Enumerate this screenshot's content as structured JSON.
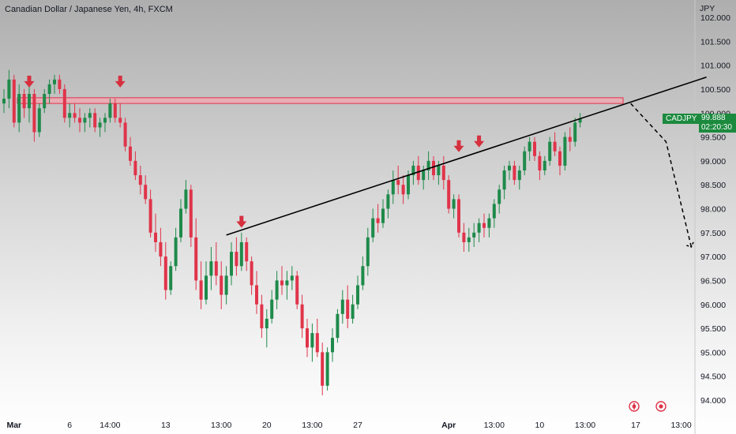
{
  "title": "Canadian Dollar / Japanese Yen, 4h, FXCM",
  "symbol": "CADJPY",
  "current_price": "99.888",
  "countdown": "02:20:30",
  "colors": {
    "up": "#1e8a4a",
    "down": "#e0344a",
    "zone_fill": "#f4a5b0",
    "zone_stroke": "#e0344a",
    "arrow": "#d6303f",
    "trendline": "#000000",
    "label_bg": "#1c8a3e"
  },
  "icons": [
    "event-icon",
    "event-icon"
  ],
  "chart_data": {
    "type": "candlestick",
    "title": "Canadian Dollar / Japanese Yen, 4h, FXCM",
    "y_unit": "JPY",
    "ylim": [
      93.8,
      102.2
    ],
    "y_ticks": [
      "94.000",
      "94.500",
      "95.000",
      "95.500",
      "96.000",
      "96.500",
      "97.000",
      "97.500",
      "98.000",
      "98.500",
      "99.000",
      "99.500",
      "100.000",
      "100.500",
      "101.000",
      "101.500",
      "102.000"
    ],
    "x_ticks": [
      {
        "label": "Mar",
        "bold": true,
        "i": 2
      },
      {
        "label": "6",
        "bold": false,
        "i": 13
      },
      {
        "label": "14:00",
        "bold": false,
        "i": 21
      },
      {
        "label": "13",
        "bold": false,
        "i": 32
      },
      {
        "label": "13:00",
        "bold": false,
        "i": 43
      },
      {
        "label": "20",
        "bold": false,
        "i": 52
      },
      {
        "label": "13:00",
        "bold": false,
        "i": 61
      },
      {
        "label": "27",
        "bold": false,
        "i": 70
      },
      {
        "label": "Apr",
        "bold": true,
        "i": 88
      },
      {
        "label": "13:00",
        "bold": false,
        "i": 97
      },
      {
        "label": "10",
        "bold": false,
        "i": 106
      },
      {
        "label": "13:00",
        "bold": false,
        "i": 115
      },
      {
        "label": "17",
        "bold": false,
        "i": 125
      },
      {
        "label": "13:00",
        "bold": false,
        "i": 134
      }
    ],
    "resistance_zone": [
      100.2,
      100.32
    ],
    "trendline": [
      {
        "i": 44,
        "price": 97.45
      },
      {
        "i": 139,
        "price": 100.75
      }
    ],
    "projection": [
      {
        "i": 124,
        "price": 100.2
      },
      {
        "i": 131,
        "price": 99.4
      },
      {
        "i": 136,
        "price": 97.2
      }
    ],
    "markers": [
      {
        "i": 5,
        "price": 100.55
      },
      {
        "i": 23,
        "price": 100.55
      },
      {
        "i": 47,
        "price": 97.62
      },
      {
        "i": 90,
        "price": 99.2
      },
      {
        "i": 94,
        "price": 99.3
      }
    ],
    "candles": [
      [
        100.2,
        100.5,
        100.0,
        100.3
      ],
      [
        100.3,
        100.9,
        100.1,
        100.7
      ],
      [
        100.7,
        100.8,
        99.7,
        99.8
      ],
      [
        99.8,
        100.6,
        99.6,
        100.4
      ],
      [
        100.4,
        100.5,
        99.9,
        100.1
      ],
      [
        100.1,
        100.6,
        99.8,
        100.4
      ],
      [
        100.4,
        100.5,
        99.4,
        99.6
      ],
      [
        99.6,
        100.2,
        99.5,
        100.1
      ],
      [
        100.1,
        100.5,
        100.0,
        100.4
      ],
      [
        100.4,
        100.7,
        100.2,
        100.6
      ],
      [
        100.6,
        100.8,
        100.4,
        100.7
      ],
      [
        100.7,
        100.8,
        100.4,
        100.5
      ],
      [
        100.5,
        100.6,
        99.8,
        99.9
      ],
      [
        99.9,
        100.2,
        99.7,
        100.0
      ],
      [
        100.0,
        100.2,
        99.8,
        99.9
      ],
      [
        99.9,
        100.1,
        99.6,
        99.8
      ],
      [
        99.8,
        100.0,
        99.6,
        99.9
      ],
      [
        99.9,
        100.1,
        99.7,
        100.0
      ],
      [
        100.0,
        100.1,
        99.6,
        99.7
      ],
      [
        99.7,
        99.9,
        99.5,
        99.8
      ],
      [
        99.8,
        100.0,
        99.6,
        99.9
      ],
      [
        99.9,
        100.3,
        99.8,
        100.2
      ],
      [
        100.2,
        100.3,
        99.8,
        99.9
      ],
      [
        99.9,
        100.2,
        99.7,
        99.8
      ],
      [
        99.8,
        99.9,
        99.2,
        99.3
      ],
      [
        99.3,
        99.5,
        98.9,
        99.0
      ],
      [
        99.0,
        99.2,
        98.6,
        98.7
      ],
      [
        98.7,
        98.9,
        98.3,
        98.5
      ],
      [
        98.5,
        98.7,
        98.1,
        98.2
      ],
      [
        98.2,
        98.4,
        97.4,
        97.5
      ],
      [
        97.5,
        97.9,
        97.1,
        97.3
      ],
      [
        97.3,
        97.6,
        96.8,
        97.0
      ],
      [
        97.0,
        97.3,
        96.1,
        96.3
      ],
      [
        96.3,
        96.9,
        96.2,
        96.8
      ],
      [
        96.8,
        97.6,
        96.7,
        97.4
      ],
      [
        97.4,
        98.2,
        97.3,
        98.0
      ],
      [
        98.0,
        98.6,
        97.9,
        98.4
      ],
      [
        98.4,
        98.5,
        97.2,
        97.4
      ],
      [
        97.4,
        97.8,
        96.3,
        96.5
      ],
      [
        96.5,
        96.9,
        95.9,
        96.1
      ],
      [
        96.1,
        96.9,
        96.0,
        96.6
      ],
      [
        96.6,
        97.2,
        96.3,
        96.9
      ],
      [
        96.9,
        97.3,
        96.4,
        96.6
      ],
      [
        96.6,
        96.9,
        95.9,
        96.2
      ],
      [
        96.2,
        96.8,
        96.0,
        96.6
      ],
      [
        96.6,
        97.3,
        96.4,
        97.1
      ],
      [
        97.1,
        97.4,
        96.6,
        96.8
      ],
      [
        96.8,
        97.5,
        96.7,
        97.3
      ],
      [
        97.3,
        97.4,
        96.7,
        96.9
      ],
      [
        96.9,
        97.0,
        96.2,
        96.4
      ],
      [
        96.4,
        96.7,
        95.8,
        96.0
      ],
      [
        96.0,
        96.2,
        95.3,
        95.5
      ],
      [
        95.5,
        95.9,
        95.1,
        95.7
      ],
      [
        95.7,
        96.3,
        95.6,
        96.1
      ],
      [
        96.1,
        96.7,
        95.9,
        96.5
      ],
      [
        96.5,
        96.8,
        96.2,
        96.4
      ],
      [
        96.4,
        96.7,
        96.1,
        96.5
      ],
      [
        96.5,
        96.8,
        96.3,
        96.6
      ],
      [
        96.6,
        96.7,
        95.9,
        96.0
      ],
      [
        96.0,
        96.2,
        95.3,
        95.5
      ],
      [
        95.5,
        95.7,
        94.9,
        95.1
      ],
      [
        95.1,
        95.6,
        94.8,
        95.4
      ],
      [
        95.4,
        95.7,
        94.9,
        95.0
      ],
      [
        95.0,
        95.2,
        94.1,
        94.3
      ],
      [
        94.3,
        95.1,
        94.2,
        95.0
      ],
      [
        95.0,
        95.5,
        94.8,
        95.3
      ],
      [
        95.3,
        95.9,
        95.2,
        95.8
      ],
      [
        95.8,
        96.3,
        95.6,
        96.1
      ],
      [
        96.1,
        96.4,
        95.5,
        95.7
      ],
      [
        95.7,
        96.2,
        95.6,
        96.0
      ],
      [
        96.0,
        96.6,
        95.9,
        96.4
      ],
      [
        96.4,
        97.0,
        96.3,
        96.8
      ],
      [
        96.8,
        97.6,
        96.6,
        97.4
      ],
      [
        97.4,
        98.0,
        97.3,
        97.8
      ],
      [
        97.8,
        98.1,
        97.5,
        97.7
      ],
      [
        97.7,
        98.2,
        97.6,
        98.0
      ],
      [
        98.0,
        98.4,
        97.8,
        98.3
      ],
      [
        98.3,
        98.8,
        98.1,
        98.6
      ],
      [
        98.6,
        98.9,
        98.3,
        98.5
      ],
      [
        98.5,
        98.7,
        98.1,
        98.3
      ],
      [
        98.3,
        98.8,
        98.2,
        98.7
      ],
      [
        98.7,
        99.0,
        98.5,
        98.9
      ],
      [
        98.9,
        99.1,
        98.5,
        98.6
      ],
      [
        98.6,
        98.9,
        98.4,
        98.8
      ],
      [
        98.8,
        99.2,
        98.6,
        99.0
      ],
      [
        99.0,
        99.1,
        98.6,
        98.7
      ],
      [
        98.7,
        99.0,
        98.5,
        98.9
      ],
      [
        98.9,
        99.1,
        98.4,
        98.6
      ],
      [
        98.6,
        98.7,
        97.9,
        98.0
      ],
      [
        98.0,
        98.3,
        97.8,
        98.2
      ],
      [
        98.2,
        98.3,
        97.4,
        97.5
      ],
      [
        97.5,
        97.7,
        97.1,
        97.3
      ],
      [
        97.3,
        97.6,
        97.1,
        97.4
      ],
      [
        97.4,
        97.7,
        97.2,
        97.5
      ],
      [
        97.5,
        97.8,
        97.3,
        97.7
      ],
      [
        97.7,
        97.9,
        97.4,
        97.6
      ],
      [
        97.6,
        97.9,
        97.4,
        97.8
      ],
      [
        97.8,
        98.2,
        97.6,
        98.1
      ],
      [
        98.1,
        98.5,
        97.9,
        98.4
      ],
      [
        98.4,
        98.9,
        98.2,
        98.8
      ],
      [
        98.8,
        99.0,
        98.6,
        98.9
      ],
      [
        98.9,
        99.0,
        98.5,
        98.6
      ],
      [
        98.6,
        98.9,
        98.4,
        98.8
      ],
      [
        98.8,
        99.3,
        98.7,
        99.2
      ],
      [
        99.2,
        99.5,
        99.0,
        99.4
      ],
      [
        99.4,
        99.5,
        99.0,
        99.1
      ],
      [
        99.1,
        99.2,
        98.6,
        98.8
      ],
      [
        98.8,
        99.1,
        98.7,
        99.0
      ],
      [
        99.0,
        99.5,
        98.9,
        99.4
      ],
      [
        99.4,
        99.6,
        99.1,
        99.2
      ],
      [
        99.2,
        99.3,
        98.7,
        98.9
      ],
      [
        98.9,
        99.6,
        98.8,
        99.5
      ],
      [
        99.5,
        99.7,
        99.2,
        99.4
      ],
      [
        99.4,
        99.9,
        99.3,
        99.8
      ],
      [
        99.8,
        100.0,
        99.7,
        99.89
      ]
    ]
  }
}
